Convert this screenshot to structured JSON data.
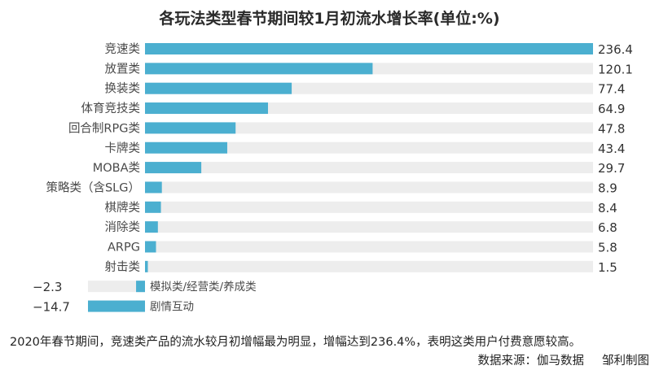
{
  "chart_data": {
    "type": "bar",
    "orientation": "horizontal",
    "title": "各玩法类型春节期间较1月初流水增长率(单位:%)",
    "categories": [
      "竞速类",
      "放置类",
      "换装类",
      "体育竞技类",
      "回合制RPG类",
      "卡牌类",
      "MOBA类",
      "策略类（含SLG）",
      "棋牌类",
      "消除类",
      "ARPG",
      "射击类",
      "模拟类/经营类/养成类",
      "剧情互动"
    ],
    "values": [
      236.4,
      120.1,
      77.4,
      64.9,
      47.8,
      43.4,
      29.7,
      8.9,
      8.4,
      6.8,
      5.8,
      1.5,
      -2.3,
      -14.7
    ],
    "value_labels": [
      "236.4",
      "120.1",
      "77.4",
      "64.9",
      "47.8",
      "43.4",
      "29.7",
      "8.9",
      "8.4",
      "6.8",
      "5.8",
      "1.5",
      "−2.3",
      "−14.7"
    ],
    "xlim": [
      -14.7,
      236.4
    ],
    "grid": false,
    "legend": "none",
    "colors": {
      "bar": "#4bafd0",
      "track": "#ededed"
    }
  },
  "footnote": "2020年春节期间，竞速类产品的流水较月初增幅最为明显，增幅达到236.4%，表明这类用户付费意愿较高。",
  "source": "数据来源：伽马数据",
  "credit": "邹利制图"
}
